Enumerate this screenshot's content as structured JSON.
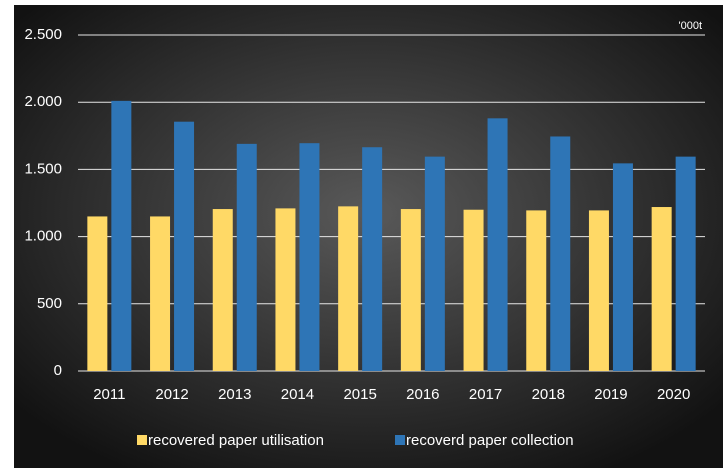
{
  "chart_data": {
    "type": "bar",
    "annotation": "'000t",
    "categories": [
      "2011",
      "2012",
      "2013",
      "2014",
      "2015",
      "2016",
      "2017",
      "2018",
      "2019",
      "2020"
    ],
    "series": [
      {
        "name": "recovered paper utilisation",
        "color": "#ffd966",
        "values": [
          1150,
          1150,
          1205,
          1210,
          1225,
          1205,
          1200,
          1195,
          1195,
          1220
        ]
      },
      {
        "name": "recoverd paper collection",
        "color": "#2e75b6",
        "values": [
          2010,
          1855,
          1690,
          1695,
          1665,
          1595,
          1880,
          1745,
          1545,
          1595
        ]
      }
    ],
    "ylim": [
      0,
      2500
    ],
    "yticks": [
      0,
      500,
      {
        "value": 1000,
        "label": "1.000"
      },
      {
        "value": 1500,
        "label": "1.500"
      },
      {
        "value": 2000,
        "label": "2.000"
      },
      {
        "value": 2500,
        "label": "2.500"
      }
    ],
    "grid": true
  }
}
